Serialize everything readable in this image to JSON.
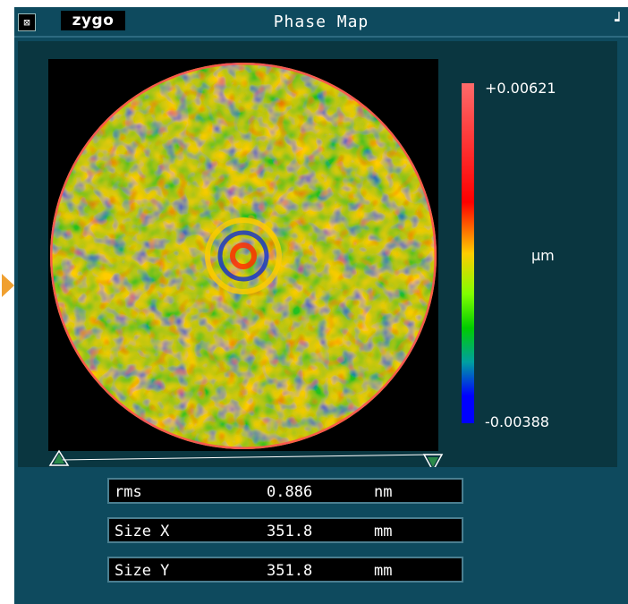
{
  "window": {
    "title": "Phase Map",
    "logo": "zygo",
    "system_icon": "system-menu-icon",
    "corner_icon": "corner-resize-icon"
  },
  "colorbar": {
    "max_label": "+0.00621",
    "min_label": "-0.00388",
    "unit": "µm",
    "colors": [
      "#ff6a6a",
      "#ff0000",
      "#ffaa00",
      "#ffff00",
      "#00cc00",
      "#00aaaa",
      "#0000ff"
    ]
  },
  "results": [
    {
      "label": "rms",
      "value": "0.886",
      "unit": "nm"
    },
    {
      "label": "Size X",
      "value": "351.8",
      "unit": "mm"
    },
    {
      "label": "Size Y",
      "value": "351.8",
      "unit": "mm"
    }
  ],
  "accent": {
    "window_bg": "#0e4a5e",
    "panel_bg": "#0a3640",
    "tab": "#f0a030"
  }
}
